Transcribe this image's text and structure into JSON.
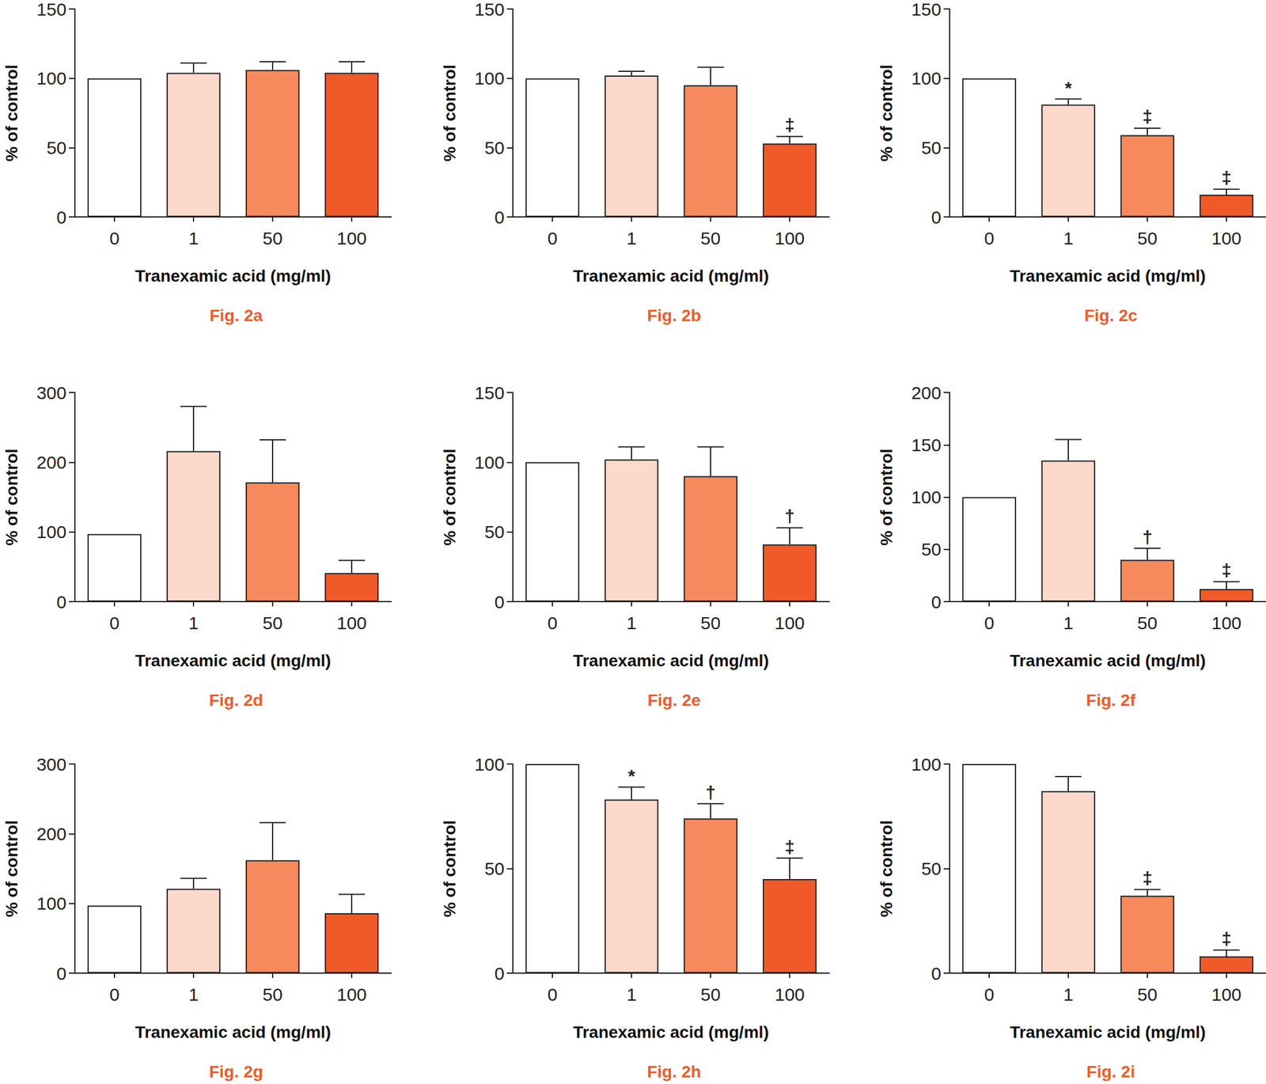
{
  "chart_data": [
    {
      "type": "bar",
      "title": "Fig. 2a",
      "x_label": "Tranexamic acid (mg/ml)",
      "y_label": "% of control",
      "categories": [
        "0",
        "1",
        "50",
        "100"
      ],
      "values": [
        100,
        104,
        106,
        104
      ],
      "errors": [
        0,
        7,
        6,
        8
      ],
      "annotations": [
        null,
        null,
        null,
        null
      ],
      "colors": [
        "#ffffff",
        "#fcd9cb",
        "#f68a5c",
        "#f05a28"
      ],
      "ylim": [
        0,
        150
      ],
      "yticks": [
        0,
        50,
        100,
        150
      ],
      "grid": false
    },
    {
      "type": "bar",
      "title": "Fig. 2b",
      "x_label": "Tranexamic acid (mg/ml)",
      "y_label": "% of control",
      "categories": [
        "0",
        "1",
        "50",
        "100"
      ],
      "values": [
        100,
        102,
        95,
        53
      ],
      "errors": [
        0,
        3,
        13,
        5
      ],
      "annotations": [
        null,
        null,
        null,
        "‡"
      ],
      "colors": [
        "#ffffff",
        "#fcd9cb",
        "#f68a5c",
        "#f05a28"
      ],
      "ylim": [
        0,
        150
      ],
      "yticks": [
        0,
        50,
        100,
        150
      ],
      "grid": false
    },
    {
      "type": "bar",
      "title": "Fig. 2c",
      "x_label": "Tranexamic acid (mg/ml)",
      "y_label": "% of control",
      "categories": [
        "0",
        "1",
        "50",
        "100"
      ],
      "values": [
        100,
        81,
        59,
        16
      ],
      "errors": [
        0,
        4,
        5,
        4
      ],
      "annotations": [
        null,
        "*",
        "‡",
        "‡"
      ],
      "colors": [
        "#ffffff",
        "#fcd9cb",
        "#f68a5c",
        "#f05a28"
      ],
      "ylim": [
        0,
        150
      ],
      "yticks": [
        0,
        50,
        100,
        150
      ],
      "grid": false
    },
    {
      "type": "bar",
      "title": "Fig. 2d",
      "x_label": "Tranexamic acid (mg/ml)",
      "y_label": "% of control",
      "categories": [
        "0",
        "1",
        "50",
        "100"
      ],
      "values": [
        97,
        216,
        171,
        41
      ],
      "errors": [
        0,
        64,
        61,
        18
      ],
      "annotations": [
        null,
        null,
        null,
        null
      ],
      "colors": [
        "#ffffff",
        "#fcd9cb",
        "#f68a5c",
        "#f05a28"
      ],
      "ylim": [
        0,
        300
      ],
      "yticks": [
        0,
        100,
        200,
        300
      ],
      "grid": false
    },
    {
      "type": "bar",
      "title": "Fig. 2e",
      "x_label": "Tranexamic acid (mg/ml)",
      "y_label": "% of control",
      "categories": [
        "0",
        "1",
        "50",
        "100"
      ],
      "values": [
        100,
        102,
        90,
        41
      ],
      "errors": [
        0,
        9,
        21,
        12
      ],
      "annotations": [
        null,
        null,
        null,
        "†"
      ],
      "colors": [
        "#ffffff",
        "#fcd9cb",
        "#f68a5c",
        "#f05a28"
      ],
      "ylim": [
        0,
        150
      ],
      "yticks": [
        0,
        50,
        100,
        150
      ],
      "grid": false
    },
    {
      "type": "bar",
      "title": "Fig. 2f",
      "x_label": "Tranexamic acid (mg/ml)",
      "y_label": "% of control",
      "categories": [
        "0",
        "1",
        "50",
        "100"
      ],
      "values": [
        100,
        135,
        40,
        12
      ],
      "errors": [
        0,
        20,
        11,
        7
      ],
      "annotations": [
        null,
        null,
        "†",
        "‡"
      ],
      "colors": [
        "#ffffff",
        "#fcd9cb",
        "#f68a5c",
        "#f05a28"
      ],
      "ylim": [
        0,
        200
      ],
      "yticks": [
        0,
        50,
        100,
        150,
        200
      ],
      "grid": false
    },
    {
      "type": "bar",
      "title": "Fig. 2g",
      "x_label": "Tranexamic acid (mg/ml)",
      "y_label": "% of control",
      "categories": [
        "0",
        "1",
        "50",
        "100"
      ],
      "values": [
        97,
        121,
        162,
        86
      ],
      "errors": [
        0,
        15,
        54,
        27
      ],
      "annotations": [
        null,
        null,
        null,
        null
      ],
      "colors": [
        "#ffffff",
        "#fcd9cb",
        "#f68a5c",
        "#f05a28"
      ],
      "ylim": [
        0,
        300
      ],
      "yticks": [
        0,
        100,
        200,
        300
      ],
      "grid": false
    },
    {
      "type": "bar",
      "title": "Fig. 2h",
      "x_label": "Tranexamic acid (mg/ml)",
      "y_label": "% of control",
      "categories": [
        "0",
        "1",
        "50",
        "100"
      ],
      "values": [
        100,
        83,
        74,
        45
      ],
      "errors": [
        0,
        6,
        7,
        10
      ],
      "annotations": [
        null,
        "*",
        "†",
        "‡"
      ],
      "colors": [
        "#ffffff",
        "#fcd9cb",
        "#f68a5c",
        "#f05a28"
      ],
      "ylim": [
        0,
        100
      ],
      "yticks": [
        0,
        50,
        100
      ],
      "grid": false
    },
    {
      "type": "bar",
      "title": "Fig. 2i",
      "x_label": "Tranexamic acid (mg/ml)",
      "y_label": "% of control",
      "categories": [
        "0",
        "1",
        "50",
        "100"
      ],
      "values": [
        100,
        87,
        37,
        8
      ],
      "errors": [
        0,
        7,
        3,
        3
      ],
      "annotations": [
        null,
        null,
        "‡",
        "‡"
      ],
      "colors": [
        "#ffffff",
        "#fcd9cb",
        "#f68a5c",
        "#f05a28"
      ],
      "ylim": [
        0,
        100
      ],
      "yticks": [
        0,
        50,
        100
      ],
      "grid": false
    }
  ]
}
